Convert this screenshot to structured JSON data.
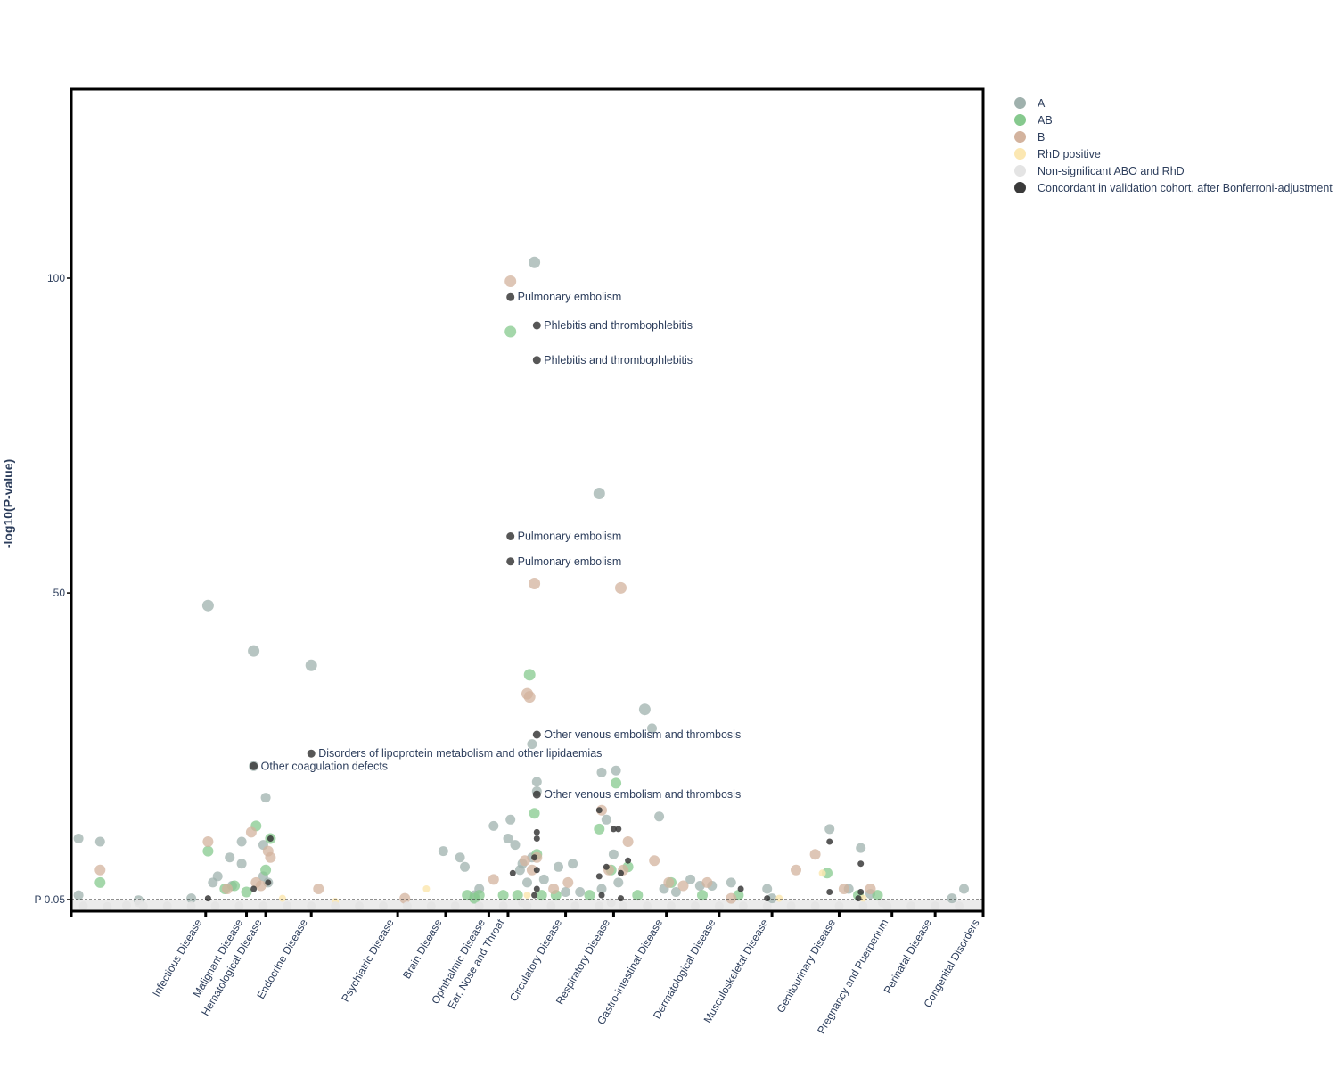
{
  "chart_data": {
    "type": "scatter",
    "title": "",
    "xlabel": "",
    "ylabel": "-log10(P-value)",
    "ylim": [
      -2,
      128
    ],
    "y_ticks": [
      {
        "value": 1.3,
        "label": "P 0.05"
      },
      {
        "value": 50,
        "label": "50"
      },
      {
        "value": 100,
        "label": "100"
      }
    ],
    "threshold_line": {
      "value": 1.3,
      "style": "dashed"
    },
    "legend_position": "right",
    "categories": [
      {
        "label": "Infectious Disease",
        "start": 0,
        "end": 5.6
      },
      {
        "label": "Malignant Disease",
        "start": 5.6,
        "end": 7.3
      },
      {
        "label": "Hematological Disease",
        "start": 7.3,
        "end": 8.1
      },
      {
        "label": "Endocrine Disease",
        "start": 8.1,
        "end": 10.0
      },
      {
        "label": "Psychiatric Disease",
        "start": 10.0,
        "end": 13.6
      },
      {
        "label": "Brain Disease",
        "start": 13.6,
        "end": 15.6
      },
      {
        "label": "Ophthalmic Disease",
        "start": 15.6,
        "end": 17.4
      },
      {
        "label": "Ear, Nose and Throat",
        "start": 17.4,
        "end": 18.2
      },
      {
        "label": "Circulatory Disease",
        "start": 18.2,
        "end": 20.6
      },
      {
        "label": "Respiratory Disease",
        "start": 20.6,
        "end": 22.6
      },
      {
        "label": "Gastro-intestinal Disease",
        "start": 22.6,
        "end": 24.8
      },
      {
        "label": "Dermatological Disease",
        "start": 24.8,
        "end": 27.0
      },
      {
        "label": "Musculoskeletal Disease",
        "start": 27.0,
        "end": 29.2
      },
      {
        "label": "Genitourinary Disease",
        "start": 29.2,
        "end": 32.0
      },
      {
        "label": "Pregnancy and Puerperium",
        "start": 32.0,
        "end": 34.2
      },
      {
        "label": "Perinatal Disease",
        "start": 34.2,
        "end": 36.0
      },
      {
        "label": "Congenital Disorders",
        "start": 36.0,
        "end": 38.0
      }
    ],
    "legend": [
      {
        "key": "A",
        "label": "A",
        "color": "#9fb1ad"
      },
      {
        "key": "AB",
        "label": "AB",
        "color": "#86c98e"
      },
      {
        "key": "B",
        "label": "B",
        "color": "#d3b39e"
      },
      {
        "key": "RhD",
        "label": "RhD positive",
        "color": "#fbe7b2"
      },
      {
        "key": "NS",
        "label": "Non-significant ABO and RhD",
        "color": "#e4e4e4"
      },
      {
        "key": "C",
        "label": "Concordant in validation cohort, after Bonferroni-adjustment",
        "color": "#3a3a3a"
      }
    ],
    "series": [
      {
        "key": "A",
        "points": [
          [
            0.3,
            11
          ],
          [
            0.3,
            2
          ],
          [
            1.2,
            10.5
          ],
          [
            5.7,
            48
          ],
          [
            5.9,
            4
          ],
          [
            6.1,
            5
          ],
          [
            6.6,
            8
          ],
          [
            7.1,
            10.5
          ],
          [
            7.1,
            7
          ],
          [
            7.6,
            40.8
          ],
          [
            7.6,
            22.5
          ],
          [
            8.0,
            10
          ],
          [
            8.0,
            5
          ],
          [
            8.1,
            17.5
          ],
          [
            8.2,
            4
          ],
          [
            10.0,
            38.5
          ],
          [
            15.5,
            9
          ],
          [
            16.2,
            8
          ],
          [
            16.4,
            6.5
          ],
          [
            17.6,
            13
          ],
          [
            18.2,
            11
          ],
          [
            18.3,
            14
          ],
          [
            18.5,
            10
          ],
          [
            18.7,
            6
          ],
          [
            18.8,
            7
          ],
          [
            19.0,
            4
          ],
          [
            19.2,
            8
          ],
          [
            19.2,
            26
          ],
          [
            19.3,
            102.5
          ],
          [
            19.4,
            20
          ],
          [
            19.4,
            18.5
          ],
          [
            20.3,
            6.5
          ],
          [
            20.9,
            7
          ],
          [
            22.0,
            65.8
          ],
          [
            22.1,
            21.5
          ],
          [
            22.1,
            3
          ],
          [
            22.3,
            14
          ],
          [
            22.6,
            8.5
          ],
          [
            22.7,
            21.8
          ],
          [
            22.8,
            4
          ],
          [
            24.2,
            28.5
          ],
          [
            23.9,
            31.5
          ],
          [
            24.5,
            14.5
          ],
          [
            25.8,
            4.5
          ],
          [
            26.2,
            3.5
          ],
          [
            27.5,
            4
          ],
          [
            29.0,
            3.0
          ],
          [
            29.2,
            1.5
          ],
          [
            31.6,
            12.5
          ],
          [
            32.4,
            3
          ],
          [
            32.9,
            9.5
          ],
          [
            33.3,
            2.2
          ],
          [
            36.7,
            1.5
          ],
          [
            37.2,
            3
          ],
          [
            6.7,
            3.5
          ],
          [
            16.8,
            2
          ],
          [
            17.0,
            3
          ],
          [
            19.7,
            4.5
          ],
          [
            20.6,
            2.5
          ],
          [
            21.2,
            2.5
          ],
          [
            24.7,
            3
          ],
          [
            25.2,
            2.5
          ],
          [
            26.7,
            3.5
          ],
          [
            5.0,
            1.5
          ],
          [
            2.8,
            1.2
          ]
        ]
      },
      {
        "key": "AB",
        "points": [
          [
            1.2,
            4
          ],
          [
            5.7,
            9
          ],
          [
            6.8,
            3.5
          ],
          [
            7.7,
            13
          ],
          [
            8.1,
            6
          ],
          [
            8.3,
            11
          ],
          [
            16.5,
            2
          ],
          [
            17.0,
            2
          ],
          [
            18.3,
            91.5
          ],
          [
            19.1,
            37
          ],
          [
            19.3,
            15
          ],
          [
            19.4,
            8.5
          ],
          [
            22.0,
            12.5
          ],
          [
            22.5,
            6
          ],
          [
            22.7,
            19.8
          ],
          [
            23.2,
            6.5
          ],
          [
            25.0,
            4
          ],
          [
            26.3,
            2
          ],
          [
            31.5,
            5.5
          ],
          [
            32.8,
            2
          ],
          [
            33.6,
            2
          ],
          [
            16.8,
            1.5
          ],
          [
            18.0,
            2
          ],
          [
            18.6,
            2
          ],
          [
            19.6,
            2
          ],
          [
            20.2,
            2
          ],
          [
            21.6,
            2
          ],
          [
            23.6,
            2
          ],
          [
            27.8,
            2
          ],
          [
            7.3,
            2.5
          ],
          [
            6.4,
            3
          ]
        ]
      },
      {
        "key": "B",
        "points": [
          [
            1.2,
            6
          ],
          [
            5.7,
            10.5
          ],
          [
            7.5,
            12
          ],
          [
            7.7,
            4
          ],
          [
            8.2,
            9
          ],
          [
            8.3,
            8
          ],
          [
            10.3,
            3
          ],
          [
            13.9,
            1.5
          ],
          [
            17.6,
            4.5
          ],
          [
            18.3,
            99.5
          ],
          [
            19.0,
            34
          ],
          [
            19.1,
            33.5
          ],
          [
            19.3,
            51.5
          ],
          [
            19.4,
            8
          ],
          [
            20.1,
            3
          ],
          [
            20.7,
            4
          ],
          [
            22.1,
            15.5
          ],
          [
            22.4,
            6
          ],
          [
            22.9,
            50.8
          ],
          [
            23.2,
            10.5
          ],
          [
            24.3,
            7.5
          ],
          [
            24.9,
            4
          ],
          [
            25.5,
            3.5
          ],
          [
            26.5,
            4
          ],
          [
            27.5,
            1.5
          ],
          [
            30.2,
            6
          ],
          [
            31.0,
            8.5
          ],
          [
            32.2,
            3.0
          ],
          [
            18.9,
            7.5
          ],
          [
            19.2,
            6
          ],
          [
            6.5,
            3
          ],
          [
            7.9,
            3.5
          ],
          [
            23.0,
            6
          ],
          [
            33.3,
            3
          ]
        ]
      },
      {
        "key": "RhD",
        "points": [
          [
            11.0,
            1
          ],
          [
            14.8,
            3
          ],
          [
            19.0,
            2
          ],
          [
            29.5,
            1.5
          ],
          [
            31.3,
            5.5
          ],
          [
            33.0,
            1.5
          ],
          [
            8.8,
            1.5
          ]
        ]
      },
      {
        "key": "NS",
        "points": [
          [
            0.5,
            0.3
          ],
          [
            1.5,
            0.2
          ],
          [
            2.3,
            0.4
          ],
          [
            3.0,
            0.3
          ],
          [
            4.0,
            0.3
          ],
          [
            5.0,
            0.3
          ],
          [
            6.0,
            0.3
          ],
          [
            7.0,
            0.3
          ],
          [
            8.0,
            0.3
          ],
          [
            9.0,
            0.3
          ],
          [
            10.0,
            0.3
          ],
          [
            11.0,
            0.3
          ],
          [
            12.0,
            0.3
          ],
          [
            13.0,
            0.3
          ],
          [
            14.0,
            0.3
          ],
          [
            15.0,
            0.3
          ],
          [
            16.0,
            0.3
          ],
          [
            17.0,
            0.3
          ],
          [
            18.0,
            0.3
          ],
          [
            19.0,
            0.3
          ],
          [
            20.0,
            0.3
          ],
          [
            21.0,
            0.3
          ],
          [
            22.0,
            0.3
          ],
          [
            23.0,
            0.3
          ],
          [
            24.0,
            0.3
          ],
          [
            25.0,
            0.3
          ],
          [
            26.0,
            0.3
          ],
          [
            27.0,
            0.3
          ],
          [
            28.0,
            0.3
          ],
          [
            29.0,
            0.3
          ],
          [
            30.0,
            0.3
          ],
          [
            31.0,
            0.3
          ],
          [
            32.0,
            0.3
          ],
          [
            33.0,
            0.3
          ],
          [
            34.0,
            0.3
          ],
          [
            35.0,
            0.3
          ],
          [
            36.0,
            0.3
          ],
          [
            37.0,
            0.3
          ],
          [
            2.8,
            0.8
          ],
          [
            18.8,
            0.8
          ],
          [
            22.5,
            0.8
          ],
          [
            33.8,
            0.8
          ]
        ]
      },
      {
        "key": "C",
        "points": [
          [
            5.7,
            1.5
          ],
          [
            7.6,
            3
          ],
          [
            8.2,
            4
          ],
          [
            8.3,
            11
          ],
          [
            10.0,
            24.5
          ],
          [
            7.6,
            22.5
          ],
          [
            18.3,
            97
          ],
          [
            19.4,
            92.5
          ],
          [
            19.4,
            87
          ],
          [
            18.3,
            59
          ],
          [
            18.3,
            55
          ],
          [
            19.4,
            27.5
          ],
          [
            19.4,
            18
          ],
          [
            19.4,
            12
          ],
          [
            19.4,
            11
          ],
          [
            19.3,
            8
          ],
          [
            19.4,
            6
          ],
          [
            18.4,
            5.5
          ],
          [
            19.4,
            3
          ],
          [
            19.3,
            2
          ],
          [
            22.0,
            5
          ],
          [
            22.0,
            15.5
          ],
          [
            22.3,
            6.5
          ],
          [
            22.6,
            12.5
          ],
          [
            22.8,
            12.5
          ],
          [
            22.9,
            5.5
          ],
          [
            23.2,
            7.5
          ],
          [
            22.1,
            2
          ],
          [
            22.9,
            1.5
          ],
          [
            27.9,
            3
          ],
          [
            29.0,
            1.5
          ],
          [
            31.6,
            10.5
          ],
          [
            31.6,
            2.5
          ],
          [
            32.9,
            7
          ],
          [
            32.9,
            2.5
          ],
          [
            32.8,
            1.5
          ]
        ]
      }
    ],
    "annotations": [
      {
        "x": 18.3,
        "y": 97,
        "text": "Pulmonary embolism"
      },
      {
        "x": 19.4,
        "y": 92.5,
        "text": "Phlebitis and thrombophlebitis"
      },
      {
        "x": 19.4,
        "y": 87,
        "text": "Phlebitis and thrombophlebitis"
      },
      {
        "x": 18.3,
        "y": 59,
        "text": "Pulmonary embolism"
      },
      {
        "x": 18.3,
        "y": 55,
        "text": "Pulmonary embolism"
      },
      {
        "x": 19.4,
        "y": 27.5,
        "text": "Other venous embolism and thrombosis"
      },
      {
        "x": 10.0,
        "y": 24.5,
        "text": "Disorders of lipoprotein metabolism and other lipidaemias"
      },
      {
        "x": 7.6,
        "y": 22.5,
        "text": "Other coagulation defects"
      },
      {
        "x": 19.4,
        "y": 18,
        "text": "Other venous embolism and thrombosis"
      }
    ]
  }
}
